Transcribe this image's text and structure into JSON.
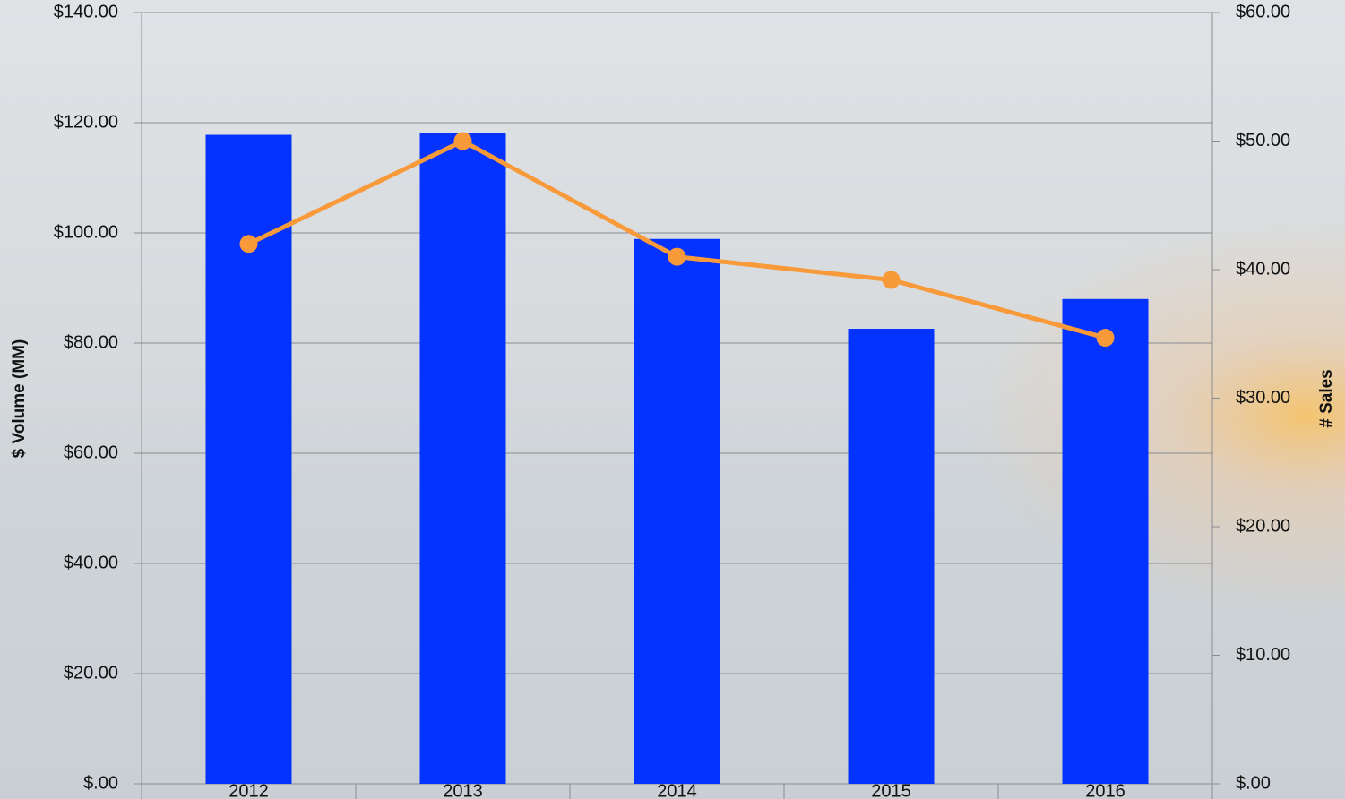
{
  "chart_data": {
    "type": "bar-line",
    "ylabel": "$ Volume (MM)",
    "y2label": "# Sales",
    "categories": [
      "2012",
      "2013",
      "2014",
      "2015",
      "2016"
    ],
    "series": [
      {
        "type": "bar",
        "color": "#0433ff",
        "values": [
          117.8,
          118.1,
          98.9,
          82.6,
          88.0
        ]
      },
      {
        "type": "line",
        "axis": "y2",
        "color": "#f89a3a",
        "values": [
          42.0,
          50.0,
          41.0,
          39.2,
          34.7
        ]
      }
    ],
    "ylim": [
      0,
      140
    ],
    "yticks": [
      {
        "value": 0,
        "label": "$.00"
      },
      {
        "value": 20,
        "label": "$20.00"
      },
      {
        "value": 40,
        "label": "$40.00"
      },
      {
        "value": 60,
        "label": "$60.00"
      },
      {
        "value": 80,
        "label": "$80.00"
      },
      {
        "value": 100,
        "label": "$100.00"
      },
      {
        "value": 120,
        "label": "$120.00"
      },
      {
        "value": 140,
        "label": "$140.00"
      }
    ],
    "y2lim": [
      0,
      60
    ],
    "y2ticks": [
      {
        "value": 0,
        "label": "$.00"
      },
      {
        "value": 10,
        "label": "$10.00"
      },
      {
        "value": 20,
        "label": "$20.00"
      },
      {
        "value": 30,
        "label": "$30.00"
      },
      {
        "value": 40,
        "label": "$40.00"
      },
      {
        "value": 50,
        "label": "$50.00"
      },
      {
        "value": 60,
        "label": "$60.00"
      }
    ],
    "grid": true
  }
}
